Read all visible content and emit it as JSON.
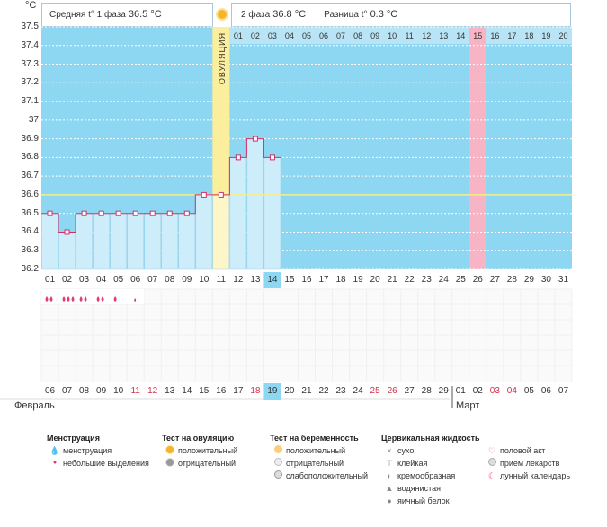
{
  "temp_bar": {
    "phase1_label": "Средняя t° 1 фаза",
    "phase1_value": "36.5 °C",
    "phase2_label": "2 фаза",
    "phase2_value": "36.8 °C",
    "diff_label": "Разница t°",
    "diff_value": "0.3 °C"
  },
  "unit": "°C",
  "ovulation_label": "ОВУЛЯЦИЯ",
  "phase2_days": [
    "01",
    "02",
    "03",
    "04",
    "05",
    "06",
    "07",
    "08",
    "09",
    "10",
    "11",
    "12",
    "13",
    "14",
    "15",
    "16",
    "17",
    "18",
    "19",
    "20"
  ],
  "cycle_days": [
    "01",
    "02",
    "03",
    "04",
    "05",
    "06",
    "07",
    "08",
    "09",
    "10",
    "11",
    "12",
    "13",
    "14",
    "15",
    "16",
    "17",
    "18",
    "19",
    "20",
    "21",
    "22",
    "23",
    "24",
    "25",
    "26",
    "27",
    "28",
    "29",
    "30",
    "31"
  ],
  "calendar_dates": [
    {
      "d": "06"
    },
    {
      "d": "07"
    },
    {
      "d": "08"
    },
    {
      "d": "09"
    },
    {
      "d": "10"
    },
    {
      "d": "11",
      "red": true
    },
    {
      "d": "12",
      "red": true
    },
    {
      "d": "13"
    },
    {
      "d": "14"
    },
    {
      "d": "15"
    },
    {
      "d": "16"
    },
    {
      "d": "17"
    },
    {
      "d": "18",
      "red": true
    },
    {
      "d": "19",
      "hl": true
    },
    {
      "d": "20"
    },
    {
      "d": "21"
    },
    {
      "d": "22"
    },
    {
      "d": "23"
    },
    {
      "d": "24"
    },
    {
      "d": "25",
      "red": true
    },
    {
      "d": "26",
      "red": true
    },
    {
      "d": "27"
    },
    {
      "d": "28"
    },
    {
      "d": "29"
    },
    {
      "d": "01"
    },
    {
      "d": "02"
    },
    {
      "d": "03",
      "red": true
    },
    {
      "d": "04",
      "red": true
    },
    {
      "d": "05"
    },
    {
      "d": "06"
    },
    {
      "d": "07"
    }
  ],
  "month_left": "Февраль",
  "month_right": "Март",
  "chart_data": {
    "type": "line",
    "ylim": [
      36.2,
      37.5
    ],
    "yticks": [
      "37.5",
      "37.4",
      "37.3",
      "37.2",
      "37.1",
      "37",
      "36.9",
      "36.8",
      "36.7",
      "36.6",
      "36.5",
      "36.4",
      "36.3",
      "36.2"
    ],
    "x": [
      "01",
      "02",
      "03",
      "04",
      "05",
      "06",
      "07",
      "08",
      "09",
      "10",
      "11",
      "12",
      "13",
      "14"
    ],
    "values": [
      36.5,
      36.4,
      36.5,
      36.5,
      36.5,
      36.5,
      36.5,
      36.5,
      36.5,
      36.6,
      36.6,
      36.8,
      36.9,
      36.8
    ],
    "coverline": 36.6,
    "ovulation_day": 11,
    "today_day": 14,
    "highlight_day": 26
  },
  "menstruation_marks": [
    2,
    3,
    2,
    2,
    1
  ],
  "legend": {
    "menstruation": {
      "title": "Менструация",
      "items": [
        "менструация",
        "небольшие выделения"
      ]
    },
    "ovulation_test": {
      "title": "Тест на овуляцию",
      "items": [
        "положительный",
        "отрицательный"
      ]
    },
    "pregnancy_test": {
      "title": "Тест на беременность",
      "items": [
        "положительный",
        "отрицательный",
        "слабоположительный"
      ]
    },
    "cervical": {
      "title": "Цервикальная жидкость",
      "items": [
        "сухо",
        "клейкая",
        "кремообразная",
        "водянистая",
        "яичный белок"
      ]
    },
    "other": {
      "items": [
        "половой акт",
        "прием лекарств",
        "лунный календарь"
      ]
    }
  }
}
